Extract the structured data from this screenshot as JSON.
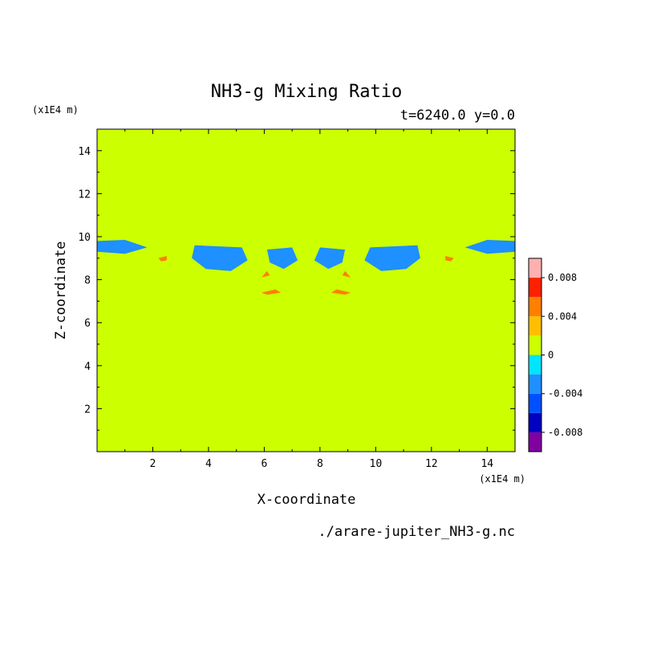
{
  "chart_data": {
    "type": "heatmap",
    "title": "NH3-g Mixing Ratio",
    "subtitle": "t=6240.0 y=0.0",
    "xlabel": "X-coordinate",
    "ylabel": "Z-coordinate",
    "x_unit": "(x1E4 m)",
    "y_unit": "(x1E4 m)",
    "xlim": [
      0,
      15
    ],
    "ylim": [
      0,
      15
    ],
    "x_ticks": [
      2,
      4,
      6,
      8,
      10,
      12,
      14
    ],
    "y_ticks": [
      2,
      4,
      6,
      8,
      10,
      12,
      14
    ],
    "x_tick_labels": [
      "2",
      "4",
      "6",
      "8",
      "10",
      "12",
      "14"
    ],
    "y_tick_labels": [
      "2",
      "4",
      "6",
      "8",
      "10",
      "12",
      "14"
    ],
    "colorbar": {
      "levels": [
        -0.01,
        -0.008,
        -0.006,
        -0.004,
        -0.002,
        0,
        0.002,
        0.004,
        0.006,
        0.008,
        0.01
      ],
      "colors": [
        "#8000a0",
        "#0000c0",
        "#0050ff",
        "#1e90ff",
        "#00e5ff",
        "#ccff00",
        "#ffbf00",
        "#ff7f00",
        "#ff2000",
        "#ffb0b0"
      ],
      "tick_values": [
        0.008,
        0.004,
        0,
        -0.004,
        -0.008
      ],
      "tick_labels": [
        "0.008",
        "0.004",
        "0",
        "-0.004",
        "-0.008"
      ]
    },
    "background_level": 0.0005,
    "regions": [
      {
        "level": 0.0015,
        "polygon": [
          [
            0.3,
            0.5
          ],
          [
            2.8,
            0.6
          ],
          [
            4.4,
            1.5
          ],
          [
            4.2,
            2.6
          ],
          [
            2.8,
            2.7
          ],
          [
            1.2,
            2.5
          ],
          [
            0.3,
            1.8
          ]
        ]
      },
      {
        "level": 0.0015,
        "polygon": [
          [
            10.6,
            1.5
          ],
          [
            12.2,
            0.6
          ],
          [
            14.7,
            0.5
          ],
          [
            14.7,
            1.8
          ],
          [
            13.8,
            2.5
          ],
          [
            12.2,
            2.7
          ],
          [
            10.8,
            2.6
          ]
        ]
      },
      {
        "level": 0.0015,
        "polygon": [
          [
            0,
            4.6
          ],
          [
            3.2,
            4.5
          ],
          [
            4.9,
            3.9
          ],
          [
            6.0,
            2.5
          ],
          [
            6.8,
            1.5
          ],
          [
            7.3,
            0.9
          ],
          [
            7.7,
            0.9
          ],
          [
            8.2,
            1.5
          ],
          [
            9.0,
            2.5
          ],
          [
            10.1,
            3.9
          ],
          [
            11.8,
            4.5
          ],
          [
            15,
            4.6
          ],
          [
            15,
            6.2
          ],
          [
            12.8,
            6.0
          ],
          [
            10.5,
            6.3
          ],
          [
            9.0,
            7.4
          ],
          [
            7.5,
            7.8
          ],
          [
            6.0,
            7.4
          ],
          [
            4.5,
            6.3
          ],
          [
            2.2,
            6.0
          ],
          [
            0,
            6.2
          ]
        ]
      },
      {
        "level": 0.0015,
        "polygon": [
          [
            3.2,
            0
          ],
          [
            4.2,
            0.9
          ],
          [
            5.0,
            1.9
          ],
          [
            5.6,
            2.8
          ],
          [
            6.6,
            1.6
          ],
          [
            7.5,
            1.1
          ],
          [
            8.4,
            1.6
          ],
          [
            9.4,
            2.8
          ],
          [
            10.0,
            1.9
          ],
          [
            10.8,
            0.9
          ],
          [
            11.8,
            0
          ],
          [
            10.3,
            0
          ],
          [
            9.3,
            1.0
          ],
          [
            8.1,
            0.2
          ],
          [
            6.9,
            0.2
          ],
          [
            5.7,
            1.0
          ],
          [
            4.7,
            0
          ]
        ]
      },
      {
        "level": 0.0015,
        "polygon": [
          [
            0,
            6.7
          ],
          [
            1.8,
            6.6
          ],
          [
            3.0,
            7.0
          ],
          [
            3.2,
            8.2
          ],
          [
            2.4,
            8.6
          ],
          [
            1.2,
            8.2
          ],
          [
            0,
            8.0
          ]
        ]
      },
      {
        "level": 0.0015,
        "polygon": [
          [
            11.8,
            8.2
          ],
          [
            12.0,
            7.0
          ],
          [
            13.2,
            6.6
          ],
          [
            15,
            6.7
          ],
          [
            15,
            8.0
          ],
          [
            13.8,
            8.2
          ],
          [
            12.6,
            8.6
          ]
        ]
      },
      {
        "level": 0.0015,
        "polygon": [
          [
            3.5,
            7.3
          ],
          [
            5.5,
            7.1
          ],
          [
            7.5,
            7.9
          ],
          [
            9.5,
            7.1
          ],
          [
            11.5,
            7.3
          ],
          [
            10.8,
            8.2
          ],
          [
            9.5,
            8.8
          ],
          [
            8.3,
            8.5
          ],
          [
            7.5,
            8.3
          ],
          [
            6.7,
            8.5
          ],
          [
            5.5,
            8.8
          ],
          [
            4.2,
            8.2
          ]
        ]
      },
      {
        "level": 0.0015,
        "polygon": [
          [
            0.2,
            10.0
          ],
          [
            1.5,
            10.2
          ],
          [
            2.3,
            11.6
          ],
          [
            1.6,
            12.5
          ],
          [
            0.4,
            12.3
          ]
        ]
      },
      {
        "level": 0.0015,
        "polygon": [
          [
            13.4,
            12.5
          ],
          [
            12.7,
            11.6
          ],
          [
            13.5,
            10.2
          ],
          [
            14.8,
            10.0
          ],
          [
            14.6,
            12.3
          ]
        ]
      },
      {
        "level": 0.0015,
        "polygon": [
          [
            1.8,
            12.8
          ],
          [
            4.0,
            12.9
          ],
          [
            5.6,
            12.3
          ],
          [
            6.6,
            10.9
          ],
          [
            7.5,
            9.8
          ],
          [
            8.4,
            10.9
          ],
          [
            9.4,
            12.3
          ],
          [
            11.0,
            12.9
          ],
          [
            13.2,
            12.8
          ],
          [
            11.0,
            13.6
          ],
          [
            7.5,
            13.4
          ],
          [
            4.0,
            13.6
          ]
        ]
      },
      {
        "level": 0.0015,
        "polygon": [
          [
            0,
            13.5
          ],
          [
            4.5,
            13.9
          ],
          [
            7.5,
            14.6
          ],
          [
            10.5,
            13.9
          ],
          [
            15,
            13.5
          ],
          [
            15,
            14.4
          ],
          [
            10.5,
            14.5
          ],
          [
            7.5,
            14.9
          ],
          [
            4.5,
            14.5
          ],
          [
            0,
            14.4
          ]
        ]
      },
      {
        "level": -0.003,
        "polygon": [
          [
            0,
            9.3
          ],
          [
            1.0,
            9.2
          ],
          [
            1.8,
            9.5
          ],
          [
            1.0,
            9.85
          ],
          [
            0,
            9.8
          ]
        ]
      },
      {
        "level": -0.003,
        "polygon": [
          [
            15,
            9.3
          ],
          [
            14.0,
            9.2
          ],
          [
            13.2,
            9.5
          ],
          [
            14.0,
            9.85
          ],
          [
            15,
            9.8
          ]
        ]
      },
      {
        "level": -0.003,
        "polygon": [
          [
            3.5,
            9.6
          ],
          [
            5.2,
            9.5
          ],
          [
            5.4,
            8.9
          ],
          [
            4.8,
            8.4
          ],
          [
            3.9,
            8.5
          ],
          [
            3.4,
            9.0
          ]
        ]
      },
      {
        "level": -0.003,
        "polygon": [
          [
            11.5,
            9.6
          ],
          [
            9.8,
            9.5
          ],
          [
            9.6,
            8.9
          ],
          [
            10.2,
            8.4
          ],
          [
            11.1,
            8.5
          ],
          [
            11.6,
            9.0
          ]
        ]
      },
      {
        "level": -0.003,
        "polygon": [
          [
            6.1,
            9.4
          ],
          [
            7.0,
            9.5
          ],
          [
            7.2,
            8.9
          ],
          [
            6.7,
            8.5
          ],
          [
            6.2,
            8.8
          ]
        ]
      },
      {
        "level": -0.003,
        "polygon": [
          [
            8.9,
            9.4
          ],
          [
            8.0,
            9.5
          ],
          [
            7.8,
            8.9
          ],
          [
            8.3,
            8.5
          ],
          [
            8.8,
            8.8
          ]
        ]
      },
      {
        "level": 0.005,
        "polygon": [
          [
            2.2,
            9.0
          ],
          [
            2.5,
            9.1
          ],
          [
            2.5,
            8.9
          ],
          [
            2.3,
            8.85
          ]
        ]
      },
      {
        "level": 0.005,
        "polygon": [
          [
            12.8,
            9.0
          ],
          [
            12.5,
            9.1
          ],
          [
            12.5,
            8.9
          ],
          [
            12.7,
            8.85
          ]
        ]
      },
      {
        "level": 0.005,
        "polygon": [
          [
            5.9,
            7.4
          ],
          [
            6.4,
            7.55
          ],
          [
            6.6,
            7.4
          ],
          [
            6.1,
            7.3
          ]
        ]
      },
      {
        "level": 0.005,
        "polygon": [
          [
            9.1,
            7.4
          ],
          [
            8.6,
            7.55
          ],
          [
            8.4,
            7.4
          ],
          [
            8.9,
            7.3
          ]
        ]
      },
      {
        "level": 0.005,
        "polygon": [
          [
            5.9,
            8.1
          ],
          [
            6.1,
            8.4
          ],
          [
            6.2,
            8.2
          ]
        ]
      },
      {
        "level": 0.005,
        "polygon": [
          [
            9.1,
            8.1
          ],
          [
            8.9,
            8.4
          ],
          [
            8.8,
            8.2
          ]
        ]
      }
    ]
  },
  "source_file": "./arare-jupiter_NH3-g.nc"
}
